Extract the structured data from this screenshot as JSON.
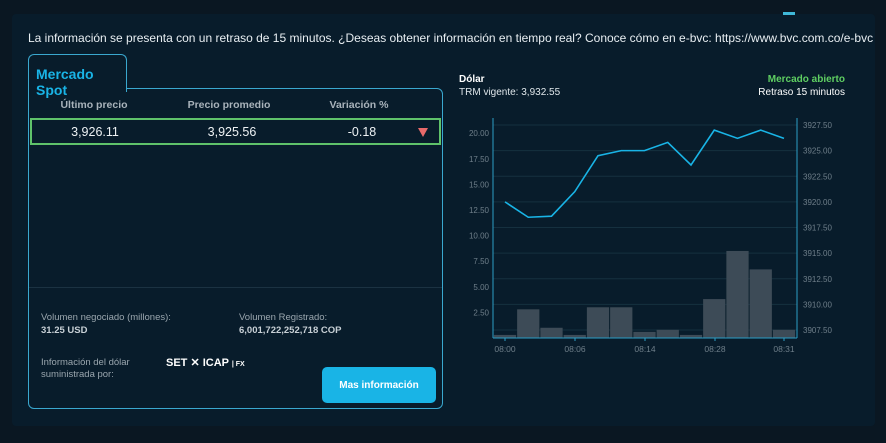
{
  "notice": "La información se presenta con un retraso de 15 minutos. ¿Deseas obtener información en tiempo real? Conoce cómo en e-bvc: https://www.bvc.com.co/e-bvc",
  "tab": "Mercado Spot",
  "table": {
    "headers": [
      "Último precio",
      "Precio promedio",
      "Variación %"
    ],
    "row": [
      "3,926.11",
      "3,925.56",
      "-0.18"
    ],
    "trend_icon": "triangle-down-icon",
    "trend_color": "#e86a6a"
  },
  "volume": {
    "label": "Volumen negociado (millones):",
    "value": "31.25 USD"
  },
  "registered": {
    "label": "Volumen Registrado:",
    "value": "6,001,722,252,718 COP"
  },
  "provider": {
    "label": "Información del dólar suministrada por:",
    "logo_text": "SET ICAP | FX"
  },
  "button": "Mas información",
  "chart_header": {
    "title": "Dólar",
    "trm": "TRM vigente: 3,932.55",
    "status": "Mercado abierto",
    "delay": "Retraso 15 minutos"
  },
  "colors": {
    "accent": "#19b4e6",
    "open": "#5fcf62",
    "bars": "#3d4b57"
  },
  "chart_data": {
    "type": "bar+line",
    "x_ticks": [
      "08:00",
      "08:06",
      "08:14",
      "08:28",
      "08:31"
    ],
    "left_axis": {
      "ticks": [
        "2.50",
        "5.00",
        "7.50",
        "10.00",
        "12.50",
        "15.00",
        "17.50",
        "20.00"
      ],
      "range": [
        0,
        21
      ]
    },
    "right_axis": {
      "ticks": [
        "3907.50",
        "3910.00",
        "3912.50",
        "3915.00",
        "3917.50",
        "3920.00",
        "3922.50",
        "3925.00",
        "3927.50"
      ],
      "range": [
        3905.5,
        3927.8
      ]
    },
    "bars": [
      0.3,
      2.8,
      1.0,
      0.3,
      3.0,
      3.0,
      0.6,
      0.8,
      0.3,
      3.8,
      8.5,
      6.7,
      0.8
    ],
    "line": [
      3920.0,
      3918.5,
      3918.6,
      3921.0,
      3924.5,
      3925.0,
      3925.0,
      3925.8,
      3923.6,
      3927.0,
      3926.2,
      3927.0,
      3926.2
    ]
  }
}
